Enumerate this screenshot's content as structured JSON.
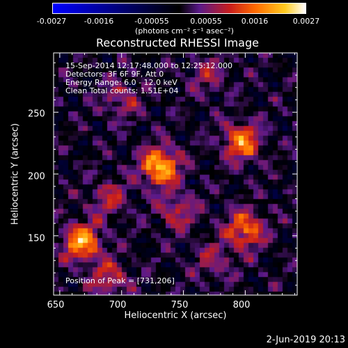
{
  "colorbar": {
    "ticks": [
      "-0.0027",
      "-0.0016",
      "-0.00055",
      "0.00055",
      "0.0016",
      "0.0027"
    ],
    "units": "(photons cm⁻² s⁻¹ asec⁻²)",
    "range": [
      -0.0027,
      0.0027
    ]
  },
  "annotations": {
    "time": "15-Sep-2014 12:17:48.000 to 12:25:12.000",
    "detectors": "Detectors: 3F 6F 9F, Att 0",
    "energy": "Energy Range: 6.0 - 12.0 keV",
    "clean": "Clean     Total counts: 1.51E+04",
    "peak": "Position of Peak = [731,206]"
  },
  "stamp": "2-Jun-2019 20:13",
  "chart_data": {
    "type": "heatmap",
    "title": "Reconstructed RHESSI Image",
    "xlabel": "Heliocentric X (arcsec)",
    "ylabel": "Heliocentric Y (arcsec)",
    "xlim": [
      645,
      842
    ],
    "ylim": [
      102,
      298
    ],
    "xticks": [
      650,
      700,
      750,
      800
    ],
    "yticks": [
      150,
      200,
      250
    ],
    "colormap": [
      "#0000ff",
      "#000000",
      "#5b1a8a",
      "#c81e1e",
      "#ff6a00",
      "#ffcc20",
      "#ffffff"
    ],
    "sources": [
      {
        "x": 731,
        "y": 206,
        "flux": 0.0027
      },
      {
        "x": 668,
        "y": 145,
        "flux": 0.0024
      },
      {
        "x": 797,
        "y": 226,
        "flux": 0.0021
      },
      {
        "x": 800,
        "y": 155,
        "flux": 0.002
      },
      {
        "x": 700,
        "y": 260,
        "flux": 0.001
      },
      {
        "x": 745,
        "y": 170,
        "flux": 0.0012
      },
      {
        "x": 690,
        "y": 180,
        "flux": 0.0011
      },
      {
        "x": 775,
        "y": 130,
        "flux": 0.0009
      },
      {
        "x": 770,
        "y": 280,
        "flux": 0.0009
      },
      {
        "x": 690,
        "y": 115,
        "flux": 0.0013
      }
    ]
  }
}
